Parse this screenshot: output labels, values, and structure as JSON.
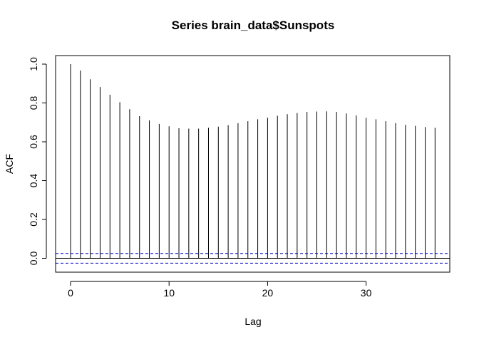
{
  "chart_data": {
    "type": "bar",
    "title": "Series  brain_data$Sunspots",
    "xlabel": "Lag",
    "ylabel": "ACF",
    "xlim": [
      0,
      37
    ],
    "ylim": [
      -0.05,
      1.05
    ],
    "x_ticks": [
      0,
      10,
      20,
      30
    ],
    "y_ticks": [
      0.0,
      0.2,
      0.4,
      0.6,
      0.8,
      1.0
    ],
    "x_tick_labels": [
      "0",
      "10",
      "20",
      "30"
    ],
    "y_tick_labels": [
      "0.0",
      "0.2",
      "0.4",
      "0.6",
      "0.8",
      "1.0"
    ],
    "lags": [
      0,
      1,
      2,
      3,
      4,
      5,
      6,
      7,
      8,
      9,
      10,
      11,
      12,
      13,
      14,
      15,
      16,
      17,
      18,
      19,
      20,
      21,
      22,
      23,
      24,
      25,
      26,
      27,
      28,
      29,
      30,
      31,
      32,
      33,
      34,
      35,
      36,
      37
    ],
    "acf": [
      1.0,
      0.967,
      0.922,
      0.882,
      0.842,
      0.804,
      0.768,
      0.732,
      0.71,
      0.692,
      0.68,
      0.67,
      0.668,
      0.668,
      0.672,
      0.678,
      0.686,
      0.696,
      0.706,
      0.716,
      0.724,
      0.734,
      0.742,
      0.748,
      0.754,
      0.756,
      0.757,
      0.754,
      0.746,
      0.736,
      0.724,
      0.716,
      0.706,
      0.696,
      0.687,
      0.682,
      0.676,
      0.672
    ],
    "confidence_bound": 0.025,
    "grid": false,
    "colors": {
      "bars": "#000000",
      "confidence": "#0000CC",
      "axis": "#000000"
    }
  }
}
